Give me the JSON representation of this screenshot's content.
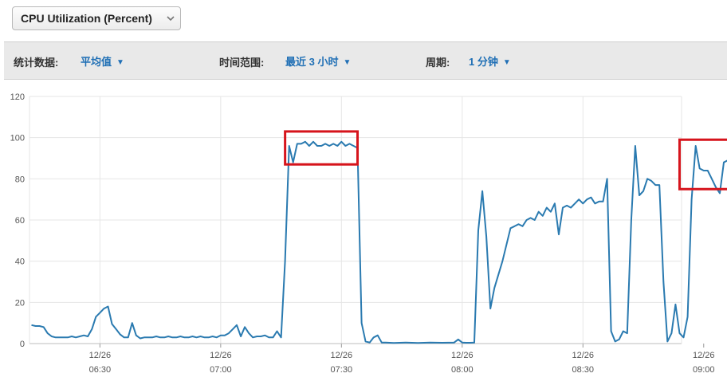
{
  "metric_selector": {
    "label": "CPU Utilization (Percent)",
    "chevron_icon": "chevron-down-icon"
  },
  "toolbar": {
    "statistic_label": "统计数据:",
    "statistic_value": "平均值",
    "time_range_label": "时间范围:",
    "time_range_value": "最近 3 小时",
    "period_label": "周期:",
    "period_value": "1 分钟",
    "caret_icon": "caret-down-icon"
  },
  "chart_data": {
    "type": "line",
    "title": "CPU Utilization (Percent)",
    "xlabel": "",
    "ylabel": "",
    "ylim": [
      0,
      120
    ],
    "yticks": [
      0,
      20,
      40,
      60,
      80,
      100,
      120
    ],
    "xlim": [
      12.5,
      174.5
    ],
    "grid": true,
    "xticks": [
      {
        "x": 30,
        "date": "12/26",
        "time": "06:30"
      },
      {
        "x": 60,
        "date": "12/26",
        "time": "07:00"
      },
      {
        "x": 90,
        "date": "12/26",
        "time": "07:30"
      },
      {
        "x": 120,
        "date": "12/26",
        "time": "08:00"
      },
      {
        "x": 150,
        "date": "12/26",
        "time": "08:30"
      },
      {
        "x": 180,
        "date": "12/26",
        "time": "09:00"
      }
    ],
    "x_unit": "minutes after 06:00",
    "line_color": "#2a7ab0",
    "highlight_color": "#d6141c",
    "highlights": [
      {
        "x0": 76,
        "x1": 94,
        "y0": 87,
        "y1": 103
      },
      {
        "x0": 174,
        "x1": 188,
        "y0": 75,
        "y1": 99
      }
    ],
    "series": [
      {
        "name": "CPU Utilization",
        "points": [
          [
            13,
            9
          ],
          [
            14,
            8.5
          ],
          [
            15,
            8.5
          ],
          [
            16,
            8
          ],
          [
            17,
            5
          ],
          [
            18,
            3.5
          ],
          [
            19,
            3
          ],
          [
            20,
            3
          ],
          [
            21,
            3
          ],
          [
            22,
            3
          ],
          [
            23,
            3.5
          ],
          [
            24,
            3
          ],
          [
            25,
            3.5
          ],
          [
            26,
            4
          ],
          [
            27,
            3.5
          ],
          [
            28,
            7
          ],
          [
            29,
            13
          ],
          [
            30,
            15
          ],
          [
            31,
            17
          ],
          [
            32,
            18
          ],
          [
            33,
            9.5
          ],
          [
            34,
            7
          ],
          [
            35,
            4.5
          ],
          [
            36,
            3
          ],
          [
            37,
            3
          ],
          [
            38,
            10
          ],
          [
            39,
            4
          ],
          [
            40,
            2.5
          ],
          [
            41,
            3
          ],
          [
            42,
            3
          ],
          [
            43,
            3
          ],
          [
            44,
            3.5
          ],
          [
            45,
            3
          ],
          [
            46,
            3
          ],
          [
            47,
            3.5
          ],
          [
            48,
            3
          ],
          [
            49,
            3
          ],
          [
            50,
            3.5
          ],
          [
            51,
            3
          ],
          [
            52,
            3
          ],
          [
            53,
            3.5
          ],
          [
            54,
            3
          ],
          [
            55,
            3.5
          ],
          [
            56,
            3
          ],
          [
            57,
            3
          ],
          [
            58,
            3.5
          ],
          [
            59,
            3
          ],
          [
            60,
            4
          ],
          [
            61,
            4
          ],
          [
            62,
            5
          ],
          [
            63,
            7
          ],
          [
            64,
            9
          ],
          [
            65,
            3.5
          ],
          [
            66,
            8
          ],
          [
            67,
            5
          ],
          [
            68,
            3
          ],
          [
            69,
            3.5
          ],
          [
            70,
            3.5
          ],
          [
            71,
            4
          ],
          [
            72,
            3
          ],
          [
            73,
            3
          ],
          [
            74,
            6
          ],
          [
            75,
            3
          ],
          [
            76,
            40
          ],
          [
            77,
            96
          ],
          [
            78,
            88
          ],
          [
            79,
            97
          ],
          [
            80,
            97
          ],
          [
            81,
            98
          ],
          [
            82,
            96
          ],
          [
            83,
            98
          ],
          [
            84,
            96
          ],
          [
            85,
            96
          ],
          [
            86,
            97
          ],
          [
            87,
            96
          ],
          [
            88,
            97
          ],
          [
            89,
            96
          ],
          [
            90,
            98
          ],
          [
            91,
            96
          ],
          [
            92,
            97
          ],
          [
            93,
            96
          ],
          [
            94,
            95
          ],
          [
            95,
            10
          ],
          [
            96,
            1
          ],
          [
            97,
            0.5
          ],
          [
            98,
            3
          ],
          [
            99,
            4
          ],
          [
            100,
            0.5
          ],
          [
            101,
            0.5
          ],
          [
            103,
            0.3
          ],
          [
            106,
            0.5
          ],
          [
            109,
            0.3
          ],
          [
            112,
            0.5
          ],
          [
            115,
            0.4
          ],
          [
            118,
            0.5
          ],
          [
            119,
            2
          ],
          [
            120,
            0.5
          ],
          [
            121,
            0.4
          ],
          [
            122,
            0.4
          ],
          [
            123,
            0.5
          ],
          [
            124,
            55
          ],
          [
            125,
            74
          ],
          [
            126,
            52
          ],
          [
            127,
            17
          ],
          [
            128,
            27
          ],
          [
            130,
            40
          ],
          [
            132,
            56
          ],
          [
            133,
            57
          ],
          [
            134,
            58
          ],
          [
            135,
            57
          ],
          [
            136,
            60
          ],
          [
            137,
            61
          ],
          [
            138,
            60
          ],
          [
            139,
            64
          ],
          [
            140,
            62
          ],
          [
            141,
            66
          ],
          [
            142,
            64
          ],
          [
            143,
            68
          ],
          [
            144,
            53
          ],
          [
            145,
            66
          ],
          [
            146,
            67
          ],
          [
            147,
            66
          ],
          [
            148,
            68
          ],
          [
            149,
            70
          ],
          [
            150,
            68
          ],
          [
            151,
            70
          ],
          [
            152,
            71
          ],
          [
            153,
            68
          ],
          [
            154,
            69
          ],
          [
            155,
            69
          ],
          [
            156,
            80
          ],
          [
            157,
            6
          ],
          [
            158,
            1
          ],
          [
            159,
            2
          ],
          [
            160,
            6
          ],
          [
            161,
            5
          ],
          [
            162,
            60
          ],
          [
            163,
            96
          ],
          [
            164,
            72
          ],
          [
            165,
            74
          ],
          [
            166,
            80
          ],
          [
            167,
            79
          ],
          [
            168,
            77
          ],
          [
            169,
            77
          ],
          [
            170,
            30
          ],
          [
            171,
            1
          ],
          [
            172,
            5
          ],
          [
            173,
            19
          ],
          [
            174,
            5
          ],
          [
            175,
            3
          ],
          [
            176,
            13
          ],
          [
            177,
            70
          ],
          [
            178,
            96
          ],
          [
            179,
            85
          ],
          [
            180,
            84
          ],
          [
            181,
            84
          ],
          [
            182,
            80
          ],
          [
            183,
            76
          ],
          [
            184,
            73
          ],
          [
            185,
            88
          ],
          [
            186,
            89
          ],
          [
            187,
            88
          ]
        ]
      }
    ]
  }
}
